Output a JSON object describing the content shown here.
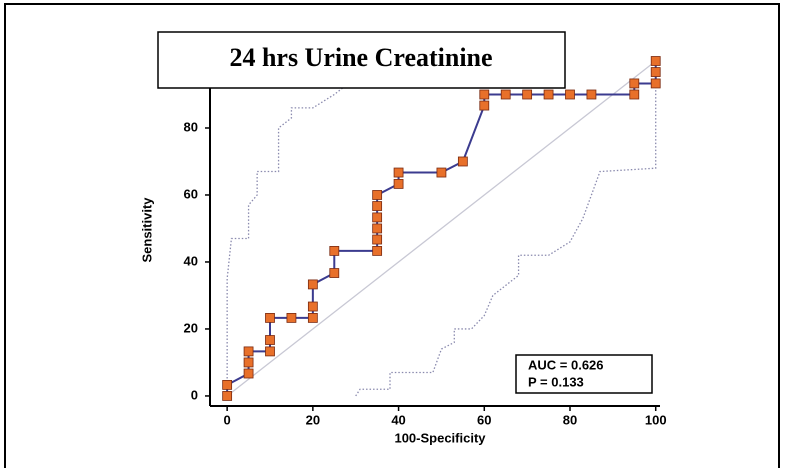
{
  "chart_data": {
    "type": "line",
    "title": "24 hrs Urine Creatinine",
    "xlabel": "100-Specificity",
    "ylabel": "Sensitivity",
    "annotations": [
      "AUC = 0.626",
      "P = 0.133"
    ],
    "xlim": [
      -4,
      101
    ],
    "ylim": [
      -3,
      100
    ],
    "xticks": [
      0,
      20,
      40,
      60,
      80,
      100
    ],
    "yticks": [
      0,
      20,
      40,
      60,
      80
    ],
    "series": [
      {
        "color": "#c8c8d4",
        "style": "solid",
        "markers": false,
        "x": [
          0,
          100
        ],
        "values": [
          0,
          100
        ]
      },
      {
        "color": "#8a8aae",
        "style": "dotted",
        "markers": false,
        "x": [
          0,
          0,
          1,
          5,
          5,
          7,
          7,
          12,
          12,
          15,
          15,
          20,
          25,
          28,
          30
        ],
        "values": [
          0,
          35,
          47,
          47,
          57,
          60,
          67,
          67,
          80,
          83,
          86,
          86,
          90,
          93,
          100
        ]
      },
      {
        "color": "#8a8aae",
        "style": "dotted",
        "markers": false,
        "x": [
          30,
          31,
          38,
          38,
          48,
          50,
          53,
          53,
          57,
          60,
          62,
          65,
          68,
          68,
          75,
          80,
          83,
          85,
          87,
          100,
          100,
          100
        ],
        "values": [
          0,
          2,
          2,
          7,
          7,
          14,
          16,
          20,
          20,
          24,
          30,
          33,
          36,
          42,
          42,
          46,
          53,
          60,
          67,
          68,
          75,
          100
        ]
      },
      {
        "color": "#3b3b8f",
        "marker_color": "#e8702a",
        "style": "solid",
        "markers": true,
        "x": [
          0,
          0,
          5,
          5,
          5,
          10,
          10,
          10,
          15,
          20,
          20,
          20,
          25,
          25,
          35,
          35,
          35,
          35,
          35,
          35,
          40,
          40,
          50,
          55,
          60,
          60,
          65,
          70,
          75,
          80,
          85,
          95,
          95,
          100,
          100,
          100
        ],
        "values": [
          0,
          3.3,
          6.7,
          10,
          13.3,
          13.3,
          16.7,
          23.3,
          23.3,
          23.3,
          26.7,
          33.3,
          36.7,
          43.3,
          43.3,
          46.7,
          50,
          53.3,
          56.7,
          60,
          63.3,
          66.7,
          66.7,
          70,
          86.7,
          90,
          90,
          90,
          90,
          90,
          90,
          90,
          93.3,
          93.3,
          96.7,
          100
        ]
      }
    ]
  }
}
